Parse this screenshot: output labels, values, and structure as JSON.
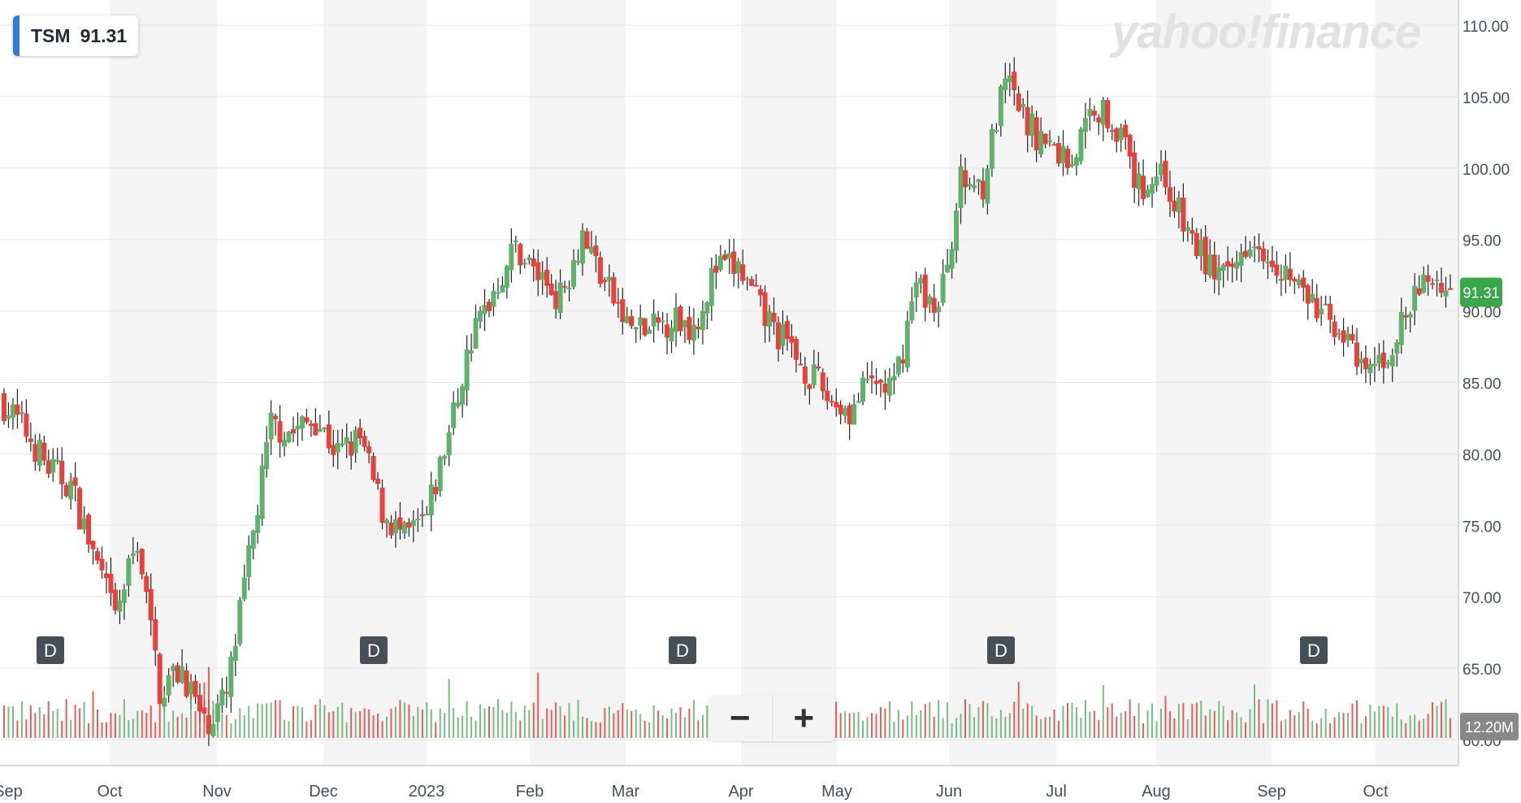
{
  "ticker": {
    "symbol": "TSM",
    "price": "91.31"
  },
  "watermark": "yahoo!finance",
  "zoom": {
    "minus_label": "−",
    "plus_label": "+"
  },
  "colors": {
    "up": "#5fb26a",
    "down": "#e8413a",
    "last_price_bg": "#3aa74a",
    "volume_label_bg": "#888888"
  },
  "chart_data": {
    "type": "candlestick",
    "symbol": "TSM",
    "interval": "D",
    "y_range": [
      60,
      111.5
    ],
    "y_ticks": [
      "110.00",
      "105.00",
      "100.00",
      "95.00",
      "90.00",
      "85.00",
      "80.00",
      "75.00",
      "70.00",
      "65.00",
      "60.00"
    ],
    "x_labels": [
      "Sep",
      "Oct",
      "Nov",
      "Dec",
      "2023",
      "Feb",
      "Mar",
      "Apr",
      "May",
      "Jun",
      "Jul",
      "Aug",
      "Sep",
      "Oct"
    ],
    "last_price": "91.31",
    "volume_label": "12.20M",
    "dividend_markers": [
      "D",
      "D",
      "D",
      "D",
      "D"
    ],
    "weekly_closes": [
      83.5,
      81.5,
      79.0,
      77.8,
      73.0,
      68.5,
      74.0,
      63.5,
      65.0,
      61.0,
      63.0,
      72.5,
      82.0,
      81.5,
      82.5,
      80.0,
      81.0,
      76.0,
      74.0,
      75.5,
      81.5,
      88.0,
      91.5,
      94.5,
      92.5,
      91.0,
      95.5,
      92.0,
      89.0,
      88.5,
      89.5,
      89.0,
      93.0,
      93.0,
      90.0,
      88.0,
      86.0,
      84.0,
      83.0,
      85.0,
      84.5,
      92.0,
      90.0,
      99.0,
      99.0,
      106.0,
      103.0,
      101.5,
      100.5,
      104.5,
      103.0,
      98.5,
      100.0,
      96.0,
      93.5,
      92.0,
      95.5,
      94.0,
      92.0,
      90.0,
      89.0,
      85.5,
      86.5,
      89.5,
      92.5,
      91.3
    ]
  }
}
